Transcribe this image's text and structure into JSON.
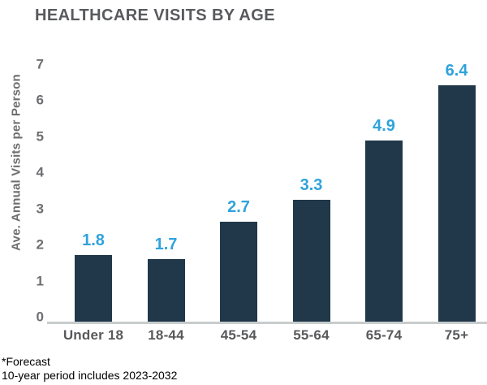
{
  "chart_data": {
    "type": "bar",
    "title": "HEALTHCARE VISITS BY AGE",
    "ylabel": "Ave. Annual Visits per Person",
    "xlabel": "",
    "categories": [
      "Under 18",
      "18-44",
      "45-54",
      "55-64",
      "65-74",
      "75+"
    ],
    "values": [
      1.8,
      1.7,
      2.7,
      3.3,
      4.9,
      6.4
    ],
    "value_labels": [
      "1.8",
      "1.7",
      "2.7",
      "3.3",
      "4.9",
      "6.4"
    ],
    "yticks": [
      0,
      1,
      2,
      3,
      4,
      5,
      6,
      7
    ],
    "ylim": [
      0,
      7
    ],
    "grid": false,
    "legend": "none",
    "colors": {
      "bar": "#203849",
      "value_label": "#2fa3dc",
      "title": "#595a5e",
      "tick_text": "#6d6e71",
      "ylabel_text": "#6d6e71",
      "category_text": "#58595b",
      "axis_line": "#c8cccd",
      "background": "#ffffff",
      "footnote_text": "#000000"
    }
  },
  "footnote": {
    "line1": "*Forecast",
    "line2": "10-year period includes 2023-2032"
  }
}
